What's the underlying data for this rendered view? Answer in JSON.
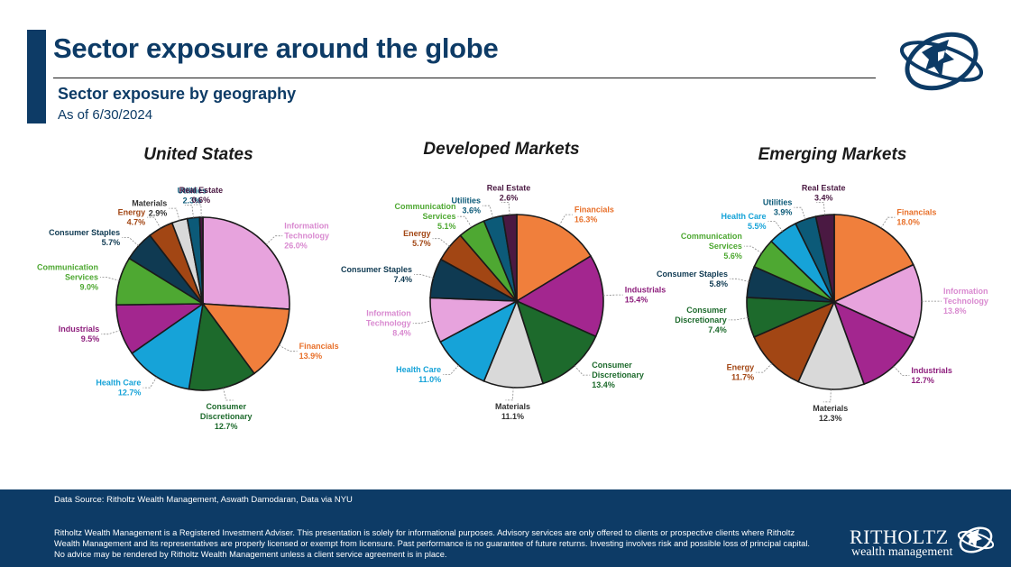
{
  "header": {
    "title": "Sector exposure around the globe",
    "subtitle": "Sector exposure by geography",
    "as_of": "As of 6/30/2024"
  },
  "footer": {
    "source": "Data Source: Ritholtz Wealth Management, Aswath Damodaran, Data via NYU",
    "disclaimer": "Ritholtz Wealth Management is a Registered Investment Adviser. This presentation is solely for informational purposes. Advisory services are only offered to clients or prospective clients where Ritholtz Wealth Management and its representatives are properly licensed or exempt from licensure. Past performance is no guarantee of future returns. Investing involves risk and possible loss of principal capital. No advice may be rendered by Ritholtz Wealth Management unless a client service agreement is in place.",
    "brand_name": "RITHOLTZ",
    "brand_sub": "wealth management"
  },
  "colors": {
    "navy": "#0d3b66",
    "Real Estate": "#4a1942",
    "Financials": "#f07f3c",
    "Industrials": "#a3268f",
    "Consumer Discretionary": "#1d6a2c",
    "Health Care": "#16a3d8",
    "Information Technology": "#e7a3dd",
    "Materials": "#d9d9d9",
    "Consumer Staples": "#0f3a52",
    "Communication Services": "#4ea832",
    "Energy": "#a24614",
    "Utilities": "#0c5a78",
    "label_text": {
      "Real Estate": "#4a1942",
      "Financials": "#e8702a",
      "Industrials": "#8e1f7d",
      "Consumer Discretionary": "#1d6a2c",
      "Health Care": "#16a3d8",
      "Information Technology": "#d98ad0",
      "Materials": "#333333",
      "Consumer Staples": "#0f3a52",
      "Communication Services": "#4ea832",
      "Energy": "#a24614",
      "Utilities": "#0c5a78"
    }
  },
  "chart_data": [
    {
      "type": "pie",
      "title": "United States",
      "slices": [
        {
          "label": "Information Technology",
          "display": "Information\nTechnology",
          "value": 26.0,
          "value_label": "26.0%"
        },
        {
          "label": "Financials",
          "display": "Financials",
          "value": 13.9,
          "value_label": "13.9%"
        },
        {
          "label": "Consumer Discretionary",
          "display": "Consumer\nDiscretionary",
          "value": 12.7,
          "value_label": "12.7%"
        },
        {
          "label": "Health Care",
          "display": "Health Care",
          "value": 12.7,
          "value_label": "12.7%"
        },
        {
          "label": "Industrials",
          "display": "Industrials",
          "value": 9.5,
          "value_label": "9.5%"
        },
        {
          "label": "Communication Services",
          "display": "Communication\nServices",
          "value": 9.0,
          "value_label": "9.0%"
        },
        {
          "label": "Consumer Staples",
          "display": "Consumer Staples",
          "value": 5.7,
          "value_label": "5.7%"
        },
        {
          "label": "Energy",
          "display": "Energy",
          "value": 4.7,
          "value_label": "4.7%"
        },
        {
          "label": "Materials",
          "display": "Materials",
          "value": 2.9,
          "value_label": "2.9%"
        },
        {
          "label": "Utilities",
          "display": "Utilities",
          "value": 2.3,
          "value_label": "2.3%"
        },
        {
          "label": "Real Estate",
          "display": "Real Estate",
          "value": 0.6,
          "value_label": "0.6%"
        }
      ]
    },
    {
      "type": "pie",
      "title": "Developed Markets",
      "slices": [
        {
          "label": "Financials",
          "display": "Financials",
          "value": 16.3,
          "value_label": "16.3%"
        },
        {
          "label": "Industrials",
          "display": "Industrials",
          "value": 15.4,
          "value_label": "15.4%"
        },
        {
          "label": "Consumer Discretionary",
          "display": "Consumer\nDiscretionary",
          "value": 13.4,
          "value_label": "13.4%"
        },
        {
          "label": "Materials",
          "display": "Materials",
          "value": 11.1,
          "value_label": "11.1%"
        },
        {
          "label": "Health Care",
          "display": "Health Care",
          "value": 11.0,
          "value_label": "11.0%"
        },
        {
          "label": "Information Technology",
          "display": "Information\nTechnology",
          "value": 8.4,
          "value_label": "8.4%"
        },
        {
          "label": "Consumer Staples",
          "display": "Consumer Staples",
          "value": 7.4,
          "value_label": "7.4%"
        },
        {
          "label": "Energy",
          "display": "Energy",
          "value": 5.7,
          "value_label": "5.7%"
        },
        {
          "label": "Communication Services",
          "display": "Communication\nServices",
          "value": 5.1,
          "value_label": "5.1%"
        },
        {
          "label": "Utilities",
          "display": "Utilities",
          "value": 3.6,
          "value_label": "3.6%"
        },
        {
          "label": "Real Estate",
          "display": "Real Estate",
          "value": 2.6,
          "value_label": "2.6%"
        }
      ]
    },
    {
      "type": "pie",
      "title": "Emerging Markets",
      "slices": [
        {
          "label": "Financials",
          "display": "Financials",
          "value": 18.0,
          "value_label": "18.0%"
        },
        {
          "label": "Information Technology",
          "display": "Information\nTechnology",
          "value": 13.8,
          "value_label": "13.8%"
        },
        {
          "label": "Industrials",
          "display": "Industrials",
          "value": 12.7,
          "value_label": "12.7%"
        },
        {
          "label": "Materials",
          "display": "Materials",
          "value": 12.3,
          "value_label": "12.3%"
        },
        {
          "label": "Energy",
          "display": "Energy",
          "value": 11.7,
          "value_label": "11.7%"
        },
        {
          "label": "Consumer Discretionary",
          "display": "Consumer\nDiscretionary",
          "value": 7.4,
          "value_label": "7.4%"
        },
        {
          "label": "Consumer Staples",
          "display": "Consumer Staples",
          "value": 5.8,
          "value_label": "5.8%"
        },
        {
          "label": "Communication Services",
          "display": "Communication\nServices",
          "value": 5.6,
          "value_label": "5.6%"
        },
        {
          "label": "Health Care",
          "display": "Health Care",
          "value": 5.5,
          "value_label": "5.5%"
        },
        {
          "label": "Utilities",
          "display": "Utilities",
          "value": 3.9,
          "value_label": "3.9%"
        },
        {
          "label": "Real Estate",
          "display": "Real Estate",
          "value": 3.4,
          "value_label": "3.4%"
        }
      ]
    }
  ]
}
